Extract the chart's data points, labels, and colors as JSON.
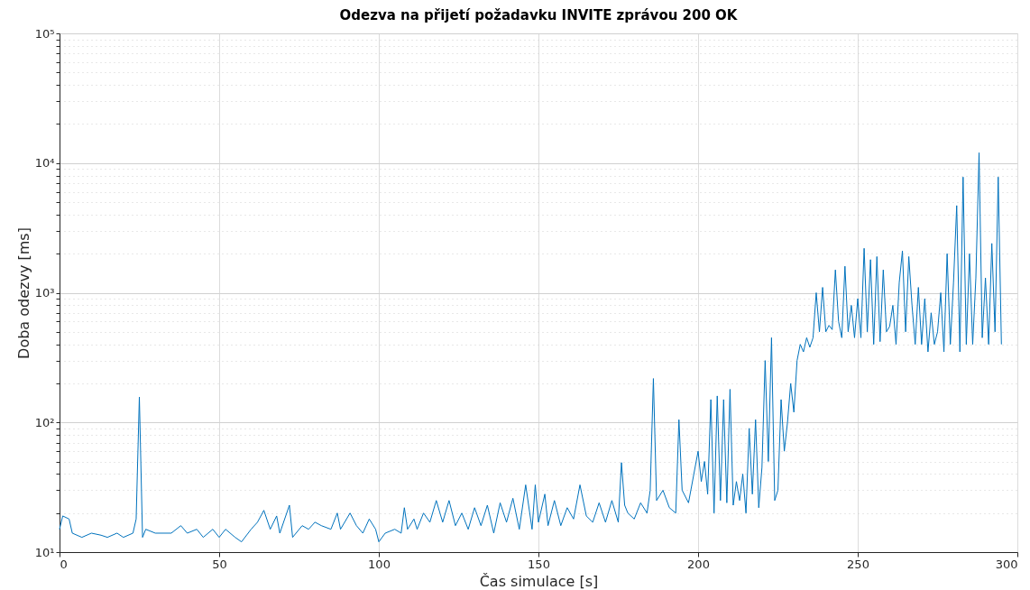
{
  "chart_data": {
    "type": "line",
    "title": "Odezva na přijetí požadavku INVITE zprávou 200 OK",
    "xlabel": "Čas simulace [s]",
    "ylabel": "Doba odezvy [ms]",
    "log": "y",
    "grid": true,
    "marker": "none",
    "line_style": "solid",
    "xlim": [
      0,
      300
    ],
    "xticks": [
      0,
      50,
      100,
      150,
      200,
      250,
      300
    ],
    "ylim": [
      10,
      100000
    ],
    "yticks": [
      {
        "value": 10,
        "label": "10¹"
      },
      {
        "value": 20,
        "label": null
      },
      {
        "value": 30,
        "label": null
      },
      {
        "value": 40,
        "label": null
      },
      {
        "value": 50,
        "label": null
      },
      {
        "value": 60,
        "label": null
      },
      {
        "value": 70,
        "label": null
      },
      {
        "value": 80,
        "label": null
      },
      {
        "value": 90,
        "label": null
      },
      {
        "value": 100,
        "label": "10²"
      },
      {
        "value": 200,
        "label": null
      },
      {
        "value": 300,
        "label": null
      },
      {
        "value": 400,
        "label": null
      },
      {
        "value": 500,
        "label": null
      },
      {
        "value": 600,
        "label": null
      },
      {
        "value": 700,
        "label": null
      },
      {
        "value": 800,
        "label": null
      },
      {
        "value": 900,
        "label": null
      },
      {
        "value": 1000,
        "label": "10³"
      },
      {
        "value": 2000,
        "label": null
      },
      {
        "value": 3000,
        "label": null
      },
      {
        "value": 4000,
        "label": null
      },
      {
        "value": 5000,
        "label": null
      },
      {
        "value": 6000,
        "label": null
      },
      {
        "value": 7000,
        "label": null
      },
      {
        "value": 8000,
        "label": null
      },
      {
        "value": 9000,
        "label": null
      },
      {
        "value": 10000,
        "label": "10⁴"
      },
      {
        "value": 20000,
        "label": null
      },
      {
        "value": 30000,
        "label": null
      },
      {
        "value": 40000,
        "label": null
      },
      {
        "value": 50000,
        "label": null
      },
      {
        "value": 60000,
        "label": null
      },
      {
        "value": 70000,
        "label": null
      },
      {
        "value": 80000,
        "label": null
      },
      {
        "value": 90000,
        "label": null
      },
      {
        "value": 100000,
        "label": "10⁵"
      }
    ],
    "series": [
      {
        "color": "#0072bd",
        "x": [
          0,
          1,
          3,
          4,
          7,
          10,
          13,
          15,
          18,
          20,
          23,
          24,
          25,
          26,
          27,
          30,
          35,
          38,
          40,
          43,
          45,
          48,
          50,
          52,
          55,
          57,
          60,
          62,
          64,
          66,
          68,
          69,
          72,
          73,
          76,
          78,
          80,
          82,
          85,
          87,
          88,
          91,
          93,
          95,
          97,
          99,
          100,
          102,
          105,
          107,
          108,
          109,
          111,
          112,
          114,
          116,
          118,
          120,
          122,
          124,
          126,
          128,
          130,
          132,
          134,
          136,
          138,
          140,
          142,
          144,
          146,
          148,
          149,
          150,
          152,
          153,
          155,
          157,
          159,
          161,
          163,
          165,
          167,
          169,
          171,
          173,
          175,
          176,
          177,
          178,
          180,
          182,
          184,
          185,
          186,
          187,
          189,
          191,
          193,
          194,
          195,
          197,
          200,
          201,
          202,
          203,
          204,
          205,
          206,
          207,
          208,
          209,
          210,
          211,
          212,
          213,
          214,
          215,
          216,
          217,
          218,
          219,
          220,
          221,
          222,
          223,
          224,
          225,
          226,
          227,
          228,
          229,
          230,
          231,
          232,
          233,
          234,
          235,
          236,
          237,
          238,
          239,
          240,
          241,
          242,
          243,
          244,
          245,
          246,
          247,
          248,
          249,
          250,
          251,
          252,
          253,
          254,
          255,
          256,
          257,
          258,
          259,
          260,
          261,
          262,
          263,
          264,
          265,
          266,
          267,
          268,
          269,
          270,
          271,
          272,
          273,
          274,
          275,
          276,
          277,
          278,
          279,
          280,
          281,
          282,
          283,
          284,
          285,
          286,
          287,
          288,
          289,
          290,
          291,
          292,
          293,
          294,
          295
        ],
        "values": [
          15,
          19,
          18,
          14,
          13,
          14,
          13.5,
          13,
          14,
          13,
          14,
          18,
          157,
          13,
          15,
          14,
          14,
          16,
          14,
          15,
          13,
          15,
          13,
          15,
          13,
          12,
          15,
          17,
          21,
          15,
          19,
          14,
          23,
          13,
          16,
          15,
          17,
          16,
          15,
          20,
          15,
          20,
          16,
          14,
          18,
          15,
          12,
          14,
          15,
          14,
          22,
          15,
          18,
          15,
          20,
          17,
          25,
          17,
          25,
          16,
          20,
          15,
          22,
          16,
          23,
          14,
          24,
          17,
          26,
          15,
          33,
          15,
          33,
          17,
          28,
          16,
          25,
          16,
          22,
          18,
          33,
          19,
          17,
          24,
          17,
          25,
          17,
          49,
          23,
          20,
          18,
          24,
          20,
          30,
          218,
          25,
          30,
          22,
          20,
          105,
          30,
          24,
          60,
          35,
          50,
          28,
          150,
          20,
          160,
          25,
          150,
          24,
          180,
          23,
          35,
          25,
          40,
          20,
          90,
          28,
          105,
          22,
          45,
          300,
          50,
          450,
          25,
          30,
          150,
          60,
          100,
          200,
          120,
          300,
          400,
          350,
          450,
          380,
          450,
          1000,
          500,
          1100,
          500,
          560,
          520,
          1500,
          600,
          450,
          1600,
          500,
          800,
          450,
          900,
          450,
          2200,
          500,
          1800,
          400,
          1900,
          420,
          1500,
          500,
          550,
          800,
          400,
          1200,
          2100,
          500,
          1900,
          800,
          400,
          1100,
          400,
          900,
          350,
          700,
          400,
          500,
          1000,
          350,
          2000,
          400,
          1200,
          4700,
          350,
          7800,
          400,
          2000,
          400,
          1300,
          12000,
          450,
          1300,
          400,
          2400,
          500,
          7800,
          400
        ]
      }
    ]
  }
}
